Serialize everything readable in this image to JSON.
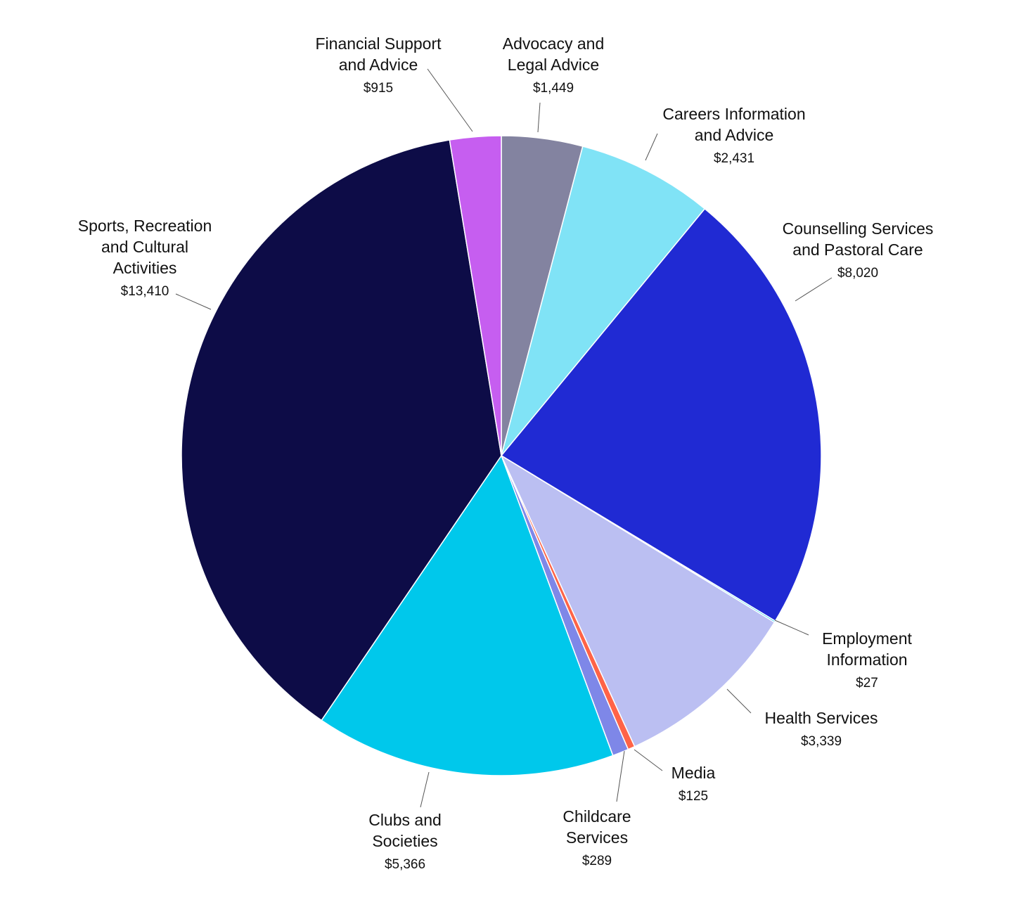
{
  "chart_data": {
    "type": "pie",
    "title": "",
    "start_angle_deg": 0,
    "direction": "clockwise",
    "slices": [
      {
        "label": "Advocacy and Legal Advice",
        "label_lines": [
          "Advocacy and",
          "Legal Advice"
        ],
        "value": 1449,
        "display": "$1,449",
        "color": "#8383A0"
      },
      {
        "label": "Careers Information and Advice",
        "label_lines": [
          "Careers Information",
          "and Advice"
        ],
        "value": 2431,
        "display": "$2,431",
        "color": "#80E3F6"
      },
      {
        "label": "Counselling Services and Pastoral Care",
        "label_lines": [
          "Counselling Services",
          "and Pastoral Care"
        ],
        "value": 8020,
        "display": "$8,020",
        "color": "#202AD3"
      },
      {
        "label": "Employment Information",
        "label_lines": [
          "Employment",
          "Information"
        ],
        "value": 27,
        "display": "$27",
        "color": "#00C8EB"
      },
      {
        "label": "Health Services",
        "label_lines": [
          "Health Services"
        ],
        "value": 3339,
        "display": "$3,339",
        "color": "#BBBFF2"
      },
      {
        "label": "Media",
        "label_lines": [
          "Media"
        ],
        "value": 125,
        "display": "$125",
        "color": "#FF6347"
      },
      {
        "label": "Childcare Services",
        "label_lines": [
          "Childcare",
          "Services"
        ],
        "value": 289,
        "display": "$289",
        "color": "#7E87E8"
      },
      {
        "label": "Clubs and Societies",
        "label_lines": [
          "Clubs and",
          "Societies"
        ],
        "value": 5366,
        "display": "$5,366",
        "color": "#00C8EB"
      },
      {
        "label": "Sports, Recreation and Cultural Activities",
        "label_lines": [
          "Sports, Recreation",
          "and Cultural",
          "Activities"
        ],
        "value": 13410,
        "display": "$13,410",
        "color": "#0D0C47"
      },
      {
        "label": "Financial Support and Advice",
        "label_lines": [
          "Financial Support",
          "and Advice"
        ],
        "value": 915,
        "display": "$915",
        "color": "#C65EF0"
      }
    ]
  }
}
